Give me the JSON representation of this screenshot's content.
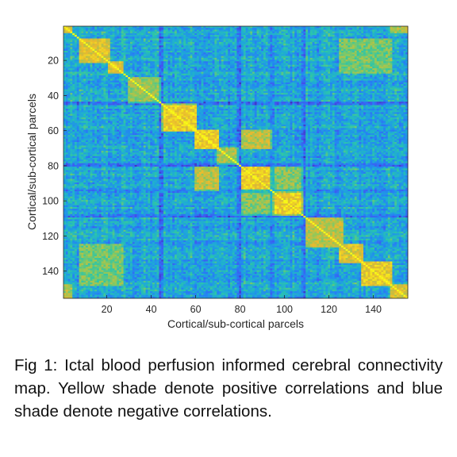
{
  "chart_data": {
    "type": "heatmap",
    "n_parcels": 155,
    "xlabel": "Cortical/sub-cortical parcels",
    "ylabel": "Cortical/sub-cortical parcels",
    "xlim": [
      0.5,
      155.5
    ],
    "ylim": [
      0.5,
      155.5
    ],
    "y_direction": "top-to-bottom",
    "xticks": [
      20,
      40,
      60,
      80,
      100,
      120,
      140
    ],
    "yticks": [
      20,
      40,
      60,
      80,
      100,
      120,
      140
    ],
    "xtick_labels": [
      "20",
      "40",
      "60",
      "80",
      "100",
      "120",
      "140"
    ],
    "ytick_labels": [
      "20",
      "40",
      "60",
      "80",
      "100",
      "120",
      "140"
    ],
    "colormap": "parula",
    "colormap_stops": [
      "#3e26a8",
      "#4354f0",
      "#2581f5",
      "#1ea9d8",
      "#2bc5aa",
      "#8fc85a",
      "#e8b830",
      "#f9fb15"
    ],
    "value_range": [
      -1,
      1
    ],
    "diagonal_value": 1,
    "blocks": [
      {
        "start": 1,
        "end": 4,
        "strength": 0.75
      },
      {
        "start": 8,
        "end": 21,
        "strength": 0.7
      },
      {
        "start": 21,
        "end": 27,
        "strength": 0.72
      },
      {
        "start": 30,
        "end": 44,
        "strength": 0.45
      },
      {
        "start": 45,
        "end": 60,
        "strength": 0.78
      },
      {
        "start": 60,
        "end": 70,
        "strength": 0.8
      },
      {
        "start": 70,
        "end": 79,
        "strength": 0.5
      },
      {
        "start": 81,
        "end": 94,
        "strength": 0.8
      },
      {
        "start": 94,
        "end": 108,
        "strength": 0.8
      },
      {
        "start": 110,
        "end": 126,
        "strength": 0.55
      },
      {
        "start": 125,
        "end": 135,
        "strength": 0.7
      },
      {
        "start": 135,
        "end": 148,
        "strength": 0.75
      },
      {
        "start": 148,
        "end": 155,
        "strength": 0.65
      }
    ],
    "cross_links": [
      {
        "a": [
          81,
          94
        ],
        "b": [
          60,
          70
        ],
        "strength": 0.55
      },
      {
        "a": [
          94,
          108
        ],
        "b": [
          81,
          94
        ],
        "strength": 0.4
      },
      {
        "a": [
          125,
          148
        ],
        "b": [
          8,
          27
        ],
        "strength": 0.35
      },
      {
        "a": [
          148,
          155
        ],
        "b": [
          1,
          4
        ],
        "strength": 0.5
      }
    ],
    "low_bands": [
      44,
      45,
      94,
      95,
      108,
      109,
      79,
      80
    ]
  },
  "caption": {
    "text": "Fig 1: Ictal blood perfusion informed cerebral connectivity map. Yellow shade denote positive correlations and blue shade denote negative correlations."
  }
}
